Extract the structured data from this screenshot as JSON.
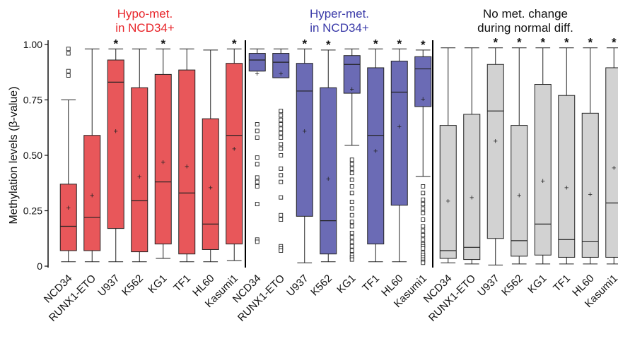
{
  "chart_data": {
    "type": "box",
    "ylabel": "Methylation levels (β-value)",
    "ylim": [
      0,
      1
    ],
    "yticks": [
      "0",
      "0.25",
      "0.50",
      "0.75",
      "1.00"
    ],
    "ytick_values": [
      0,
      0.25,
      0.5,
      0.75,
      1.0
    ],
    "categories": [
      "NCD34",
      "RUNX1-ETO",
      "U937",
      "K562",
      "KG1",
      "TF1",
      "HL60",
      "Kasumi1"
    ],
    "groups": [
      {
        "title_lines": [
          "Hypo-met.",
          "in NCD34+"
        ],
        "title_color": "#e8262b",
        "fill": "#e8575a",
        "boxes": [
          {
            "label": "NCD34",
            "whisker_low": 0.02,
            "q1": 0.07,
            "median": 0.18,
            "q3": 0.37,
            "whisker_high": 0.75,
            "mean": 0.265,
            "outliers": [
              0.86,
              0.88,
              0.96,
              0.98
            ],
            "significant": false
          },
          {
            "label": "RUNX1-ETO",
            "whisker_low": 0.02,
            "q1": 0.07,
            "median": 0.22,
            "q3": 0.59,
            "whisker_high": 0.98,
            "mean": 0.32,
            "outliers": [],
            "significant": false
          },
          {
            "label": "U937",
            "whisker_low": 0.02,
            "q1": 0.17,
            "median": 0.83,
            "q3": 0.93,
            "whisker_high": 0.98,
            "mean": 0.61,
            "outliers": [],
            "significant": true
          },
          {
            "label": "K562",
            "whisker_low": 0.02,
            "q1": 0.065,
            "median": 0.295,
            "q3": 0.805,
            "whisker_high": 0.98,
            "mean": 0.405,
            "outliers": [],
            "significant": false
          },
          {
            "label": "KG1",
            "whisker_low": 0.035,
            "q1": 0.1,
            "median": 0.38,
            "q3": 0.865,
            "whisker_high": 0.98,
            "mean": 0.47,
            "outliers": [],
            "significant": true
          },
          {
            "label": "TF1",
            "whisker_low": 0.02,
            "q1": 0.055,
            "median": 0.33,
            "q3": 0.885,
            "whisker_high": 0.98,
            "mean": 0.45,
            "outliers": [],
            "significant": false
          },
          {
            "label": "HL60",
            "whisker_low": 0.02,
            "q1": 0.075,
            "median": 0.19,
            "q3": 0.665,
            "whisker_high": 0.975,
            "mean": 0.355,
            "outliers": [],
            "significant": false
          },
          {
            "label": "Kasumi1",
            "whisker_low": 0.025,
            "q1": 0.1,
            "median": 0.59,
            "q3": 0.915,
            "whisker_high": 0.98,
            "mean": 0.53,
            "outliers": [],
            "significant": true
          }
        ]
      },
      {
        "title_lines": [
          "Hyper-met.",
          "in NCD34+"
        ],
        "title_color": "#3a3aa8",
        "fill": "#6b6bb5",
        "boxes": [
          {
            "label": "NCD34",
            "whisker_low": 0.88,
            "q1": 0.88,
            "median": 0.93,
            "q3": 0.96,
            "whisker_high": 0.98,
            "mean": 0.87,
            "outliers": [
              0.64,
              0.61,
              0.58,
              0.49,
              0.46,
              0.4,
              0.38,
              0.36,
              0.28,
              0.12,
              0.11
            ],
            "significant": false
          },
          {
            "label": "RUNX1-ETO",
            "whisker_low": 0.85,
            "q1": 0.85,
            "median": 0.92,
            "q3": 0.96,
            "whisker_high": 0.98,
            "mean": 0.87,
            "outliers": [
              0.7,
              0.68,
              0.66,
              0.64,
              0.62,
              0.6,
              0.58,
              0.55,
              0.53,
              0.5,
              0.44,
              0.41,
              0.38,
              0.31,
              0.23,
              0.21,
              0.09,
              0.08,
              0.07
            ],
            "significant": false
          },
          {
            "label": "U937",
            "whisker_low": 0.015,
            "q1": 0.225,
            "median": 0.79,
            "q3": 0.915,
            "whisker_high": 0.98,
            "mean": 0.61,
            "outliers": [],
            "significant": true
          },
          {
            "label": "K562",
            "whisker_low": 0.02,
            "q1": 0.055,
            "median": 0.205,
            "q3": 0.805,
            "whisker_high": 0.975,
            "mean": 0.395,
            "outliers": [],
            "significant": true
          },
          {
            "label": "KG1",
            "whisker_low": 0.545,
            "q1": 0.78,
            "median": 0.91,
            "q3": 0.95,
            "whisker_high": 0.98,
            "mean": 0.8,
            "outliers": [
              0.48,
              0.46,
              0.44,
              0.42,
              0.39,
              0.36,
              0.33,
              0.29,
              0.26,
              0.23,
              0.2,
              0.18,
              0.15,
              0.13,
              0.11,
              0.09,
              0.07,
              0.05,
              0.04,
              0.03
            ],
            "significant": false
          },
          {
            "label": "TF1",
            "whisker_low": 0.02,
            "q1": 0.1,
            "median": 0.59,
            "q3": 0.895,
            "whisker_high": 0.98,
            "mean": 0.52,
            "outliers": [],
            "significant": true
          },
          {
            "label": "HL60",
            "whisker_low": 0.02,
            "q1": 0.275,
            "median": 0.785,
            "q3": 0.925,
            "whisker_high": 0.98,
            "mean": 0.63,
            "outliers": [],
            "significant": true
          },
          {
            "label": "Kasumi1",
            "whisker_low": 0.405,
            "q1": 0.72,
            "median": 0.89,
            "q3": 0.945,
            "whisker_high": 0.975,
            "mean": 0.755,
            "outliers": [
              0.36,
              0.33,
              0.3,
              0.28,
              0.26,
              0.24,
              0.21,
              0.18,
              0.16,
              0.14,
              0.12,
              0.1,
              0.09,
              0.08,
              0.06,
              0.05,
              0.04,
              0.03,
              0.02,
              0.015
            ],
            "significant": true
          }
        ]
      },
      {
        "title_lines": [
          "No met. change",
          "during normal diff."
        ],
        "title_color": "#111111",
        "fill": "#d2d2d2",
        "boxes": [
          {
            "label": "NCD34",
            "whisker_low": 0.015,
            "q1": 0.035,
            "median": 0.07,
            "q3": 0.635,
            "whisker_high": 0.985,
            "mean": 0.295,
            "outliers": [],
            "significant": false
          },
          {
            "label": "RUNX1-ETO",
            "whisker_low": 0.01,
            "q1": 0.03,
            "median": 0.085,
            "q3": 0.685,
            "whisker_high": 0.985,
            "mean": 0.31,
            "outliers": [],
            "significant": false
          },
          {
            "label": "U937",
            "whisker_low": 0.005,
            "q1": 0.125,
            "median": 0.7,
            "q3": 0.91,
            "whisker_high": 0.985,
            "mean": 0.565,
            "outliers": [],
            "significant": true
          },
          {
            "label": "K562",
            "whisker_low": 0.01,
            "q1": 0.045,
            "median": 0.115,
            "q3": 0.635,
            "whisker_high": 0.985,
            "mean": 0.32,
            "outliers": [],
            "significant": true
          },
          {
            "label": "KG1",
            "whisker_low": 0.01,
            "q1": 0.05,
            "median": 0.19,
            "q3": 0.82,
            "whisker_high": 0.985,
            "mean": 0.385,
            "outliers": [],
            "significant": true
          },
          {
            "label": "TF1",
            "whisker_low": 0.01,
            "q1": 0.04,
            "median": 0.12,
            "q3": 0.77,
            "whisker_high": 0.985,
            "mean": 0.355,
            "outliers": [],
            "significant": true
          },
          {
            "label": "HL60",
            "whisker_low": 0.01,
            "q1": 0.04,
            "median": 0.11,
            "q3": 0.69,
            "whisker_high": 0.985,
            "mean": 0.325,
            "outliers": [],
            "significant": true
          },
          {
            "label": "Kasumi1",
            "whisker_low": 0.01,
            "q1": 0.04,
            "median": 0.285,
            "q3": 0.895,
            "whisker_high": 0.985,
            "mean": 0.445,
            "outliers": [],
            "significant": true
          }
        ]
      }
    ],
    "significance_marker": "*",
    "mean_marker": "+",
    "grid": false,
    "legend": "none"
  }
}
